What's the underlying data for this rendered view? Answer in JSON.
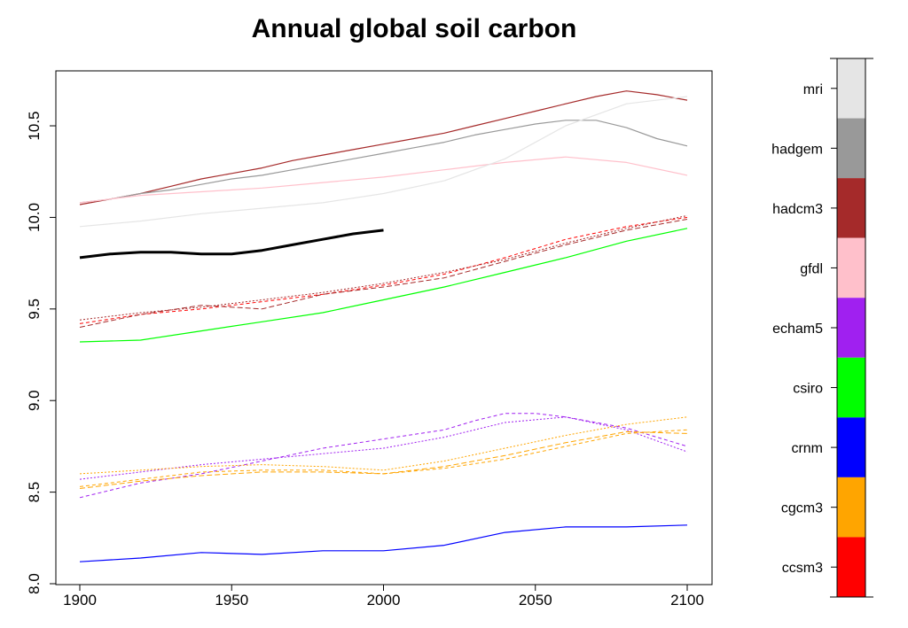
{
  "chart_data": {
    "type": "line",
    "title": "Annual global soil carbon",
    "xlabel": "",
    "ylabel": "",
    "xlim": [
      1900,
      2100
    ],
    "ylim": [
      8.0,
      10.8
    ],
    "x_ticks": [
      "1900",
      "1950",
      "2000",
      "2050",
      "2100"
    ],
    "y_ticks": [
      "8.0",
      "8.5",
      "9.0",
      "9.5",
      "10.0",
      "10.5"
    ],
    "grid": false,
    "legend_placement": "right",
    "legend": [
      {
        "name": "mri",
        "color": "#e5e5e5"
      },
      {
        "name": "hadgem",
        "color": "#999999"
      },
      {
        "name": "hadcm3",
        "color": "#a52a2a"
      },
      {
        "name": "gfdl",
        "color": "#ffc0cb"
      },
      {
        "name": "echam5",
        "color": "#a020f0"
      },
      {
        "name": "csiro",
        "color": "#00ff00"
      },
      {
        "name": "crnm",
        "color": "#0000ff"
      },
      {
        "name": "cgcm3",
        "color": "#ffa500"
      },
      {
        "name": "ccsm3",
        "color": "#ff0000"
      }
    ],
    "series": [
      {
        "color": "#000000",
        "width": 3,
        "dash": "",
        "x": [
          1900,
          1910,
          1920,
          1930,
          1940,
          1950,
          1960,
          1970,
          1980,
          1990,
          2000
        ],
        "y": [
          9.78,
          9.8,
          9.81,
          9.81,
          9.8,
          9.8,
          9.82,
          9.85,
          9.88,
          9.91,
          9.93
        ]
      },
      {
        "color": "#a52a2a",
        "width": 1.2,
        "dash": "",
        "x": [
          1900,
          1910,
          1920,
          1930,
          1940,
          1950,
          1960,
          1970,
          1980,
          1990,
          2000,
          2010,
          2020,
          2030,
          2040,
          2050,
          2060,
          2070,
          2080,
          2090,
          2100
        ],
        "y": [
          10.07,
          10.1,
          10.13,
          10.17,
          10.21,
          10.24,
          10.27,
          10.31,
          10.34,
          10.37,
          10.4,
          10.43,
          10.46,
          10.5,
          10.54,
          10.58,
          10.62,
          10.66,
          10.69,
          10.67,
          10.64
        ]
      },
      {
        "color": "#999999",
        "width": 1.2,
        "dash": "",
        "x": [
          1900,
          1910,
          1920,
          1930,
          1940,
          1950,
          1960,
          1970,
          1980,
          1990,
          2000,
          2010,
          2020,
          2030,
          2040,
          2050,
          2060,
          2070,
          2080,
          2090,
          2100
        ],
        "y": [
          10.08,
          10.1,
          10.13,
          10.15,
          10.18,
          10.21,
          10.23,
          10.26,
          10.29,
          10.32,
          10.35,
          10.38,
          10.41,
          10.45,
          10.48,
          10.51,
          10.53,
          10.53,
          10.49,
          10.43,
          10.39
        ]
      },
      {
        "color": "#ffc0cb",
        "width": 1.2,
        "dash": "",
        "x": [
          1900,
          1920,
          1940,
          1960,
          1980,
          2000,
          2020,
          2040,
          2060,
          2080,
          2100
        ],
        "y": [
          10.08,
          10.12,
          10.14,
          10.16,
          10.19,
          10.22,
          10.26,
          10.3,
          10.33,
          10.3,
          10.23
        ]
      },
      {
        "color": "#e5e5e5",
        "width": 1.2,
        "dash": "",
        "x": [
          1900,
          1920,
          1940,
          1960,
          1980,
          2000,
          2020,
          2040,
          2060,
          2080,
          2100
        ],
        "y": [
          9.95,
          9.98,
          10.02,
          10.05,
          10.08,
          10.13,
          10.2,
          10.32,
          10.5,
          10.62,
          10.66
        ]
      },
      {
        "color": "#ff0000",
        "width": 1,
        "dash": "4,3",
        "x": [
          1900,
          1920,
          1940,
          1960,
          1980,
          2000,
          2020,
          2040,
          2060,
          2080,
          2100
        ],
        "y": [
          9.42,
          9.47,
          9.5,
          9.54,
          9.58,
          9.63,
          9.69,
          9.78,
          9.88,
          9.95,
          10.0
        ]
      },
      {
        "color": "#a52a2a",
        "width": 1,
        "dash": "6,3",
        "x": [
          1900,
          1920,
          1940,
          1960,
          1980,
          2000,
          2020,
          2040,
          2060,
          2080,
          2100
        ],
        "y": [
          9.4,
          9.47,
          9.52,
          9.5,
          9.58,
          9.62,
          9.67,
          9.76,
          9.85,
          9.93,
          9.99
        ]
      },
      {
        "color": "#a52a2a",
        "width": 1,
        "dash": "2,2",
        "x": [
          1900,
          1920,
          1940,
          1960,
          1980,
          2000,
          2020,
          2040,
          2060,
          2080,
          2100
        ],
        "y": [
          9.44,
          9.48,
          9.51,
          9.55,
          9.59,
          9.64,
          9.7,
          9.77,
          9.86,
          9.94,
          10.01
        ]
      },
      {
        "color": "#00ff00",
        "width": 1.2,
        "dash": "",
        "x": [
          1900,
          1920,
          1940,
          1960,
          1980,
          2000,
          2020,
          2040,
          2060,
          2080,
          2100
        ],
        "y": [
          9.32,
          9.33,
          9.38,
          9.43,
          9.48,
          9.55,
          9.62,
          9.7,
          9.78,
          9.87,
          9.94
        ]
      },
      {
        "color": "#a020f0",
        "width": 1,
        "dash": "4,3",
        "x": [
          1900,
          1920,
          1940,
          1960,
          1980,
          2000,
          2020,
          2030,
          2040,
          2050,
          2060,
          2080,
          2100
        ],
        "y": [
          8.47,
          8.55,
          8.6,
          8.67,
          8.74,
          8.79,
          8.84,
          8.89,
          8.93,
          8.93,
          8.91,
          8.85,
          8.75
        ]
      },
      {
        "color": "#a020f0",
        "width": 1,
        "dash": "2,2",
        "x": [
          1900,
          1920,
          1940,
          1960,
          1980,
          2000,
          2020,
          2040,
          2060,
          2080,
          2100
        ],
        "y": [
          8.57,
          8.61,
          8.65,
          8.68,
          8.71,
          8.74,
          8.8,
          8.88,
          8.91,
          8.84,
          8.72
        ]
      },
      {
        "color": "#ffa500",
        "width": 1,
        "dash": "4,3",
        "x": [
          1900,
          1920,
          1940,
          1960,
          1980,
          2000,
          2020,
          2040,
          2060,
          2080,
          2100
        ],
        "y": [
          8.53,
          8.57,
          8.61,
          8.62,
          8.62,
          8.6,
          8.63,
          8.68,
          8.75,
          8.82,
          8.84
        ]
      },
      {
        "color": "#ffa500",
        "width": 1,
        "dash": "2,2",
        "x": [
          1900,
          1920,
          1940,
          1960,
          1980,
          2000,
          2020,
          2040,
          2060,
          2080,
          2100
        ],
        "y": [
          8.6,
          8.62,
          8.64,
          8.65,
          8.64,
          8.62,
          8.67,
          8.74,
          8.81,
          8.87,
          8.91
        ]
      },
      {
        "color": "#ffa500",
        "width": 1,
        "dash": "6,3",
        "x": [
          1900,
          1920,
          1940,
          1960,
          1980,
          2000,
          2020,
          2040,
          2060,
          2080,
          2100
        ],
        "y": [
          8.52,
          8.56,
          8.59,
          8.61,
          8.61,
          8.6,
          8.64,
          8.7,
          8.77,
          8.83,
          8.82
        ]
      },
      {
        "color": "#0000ff",
        "width": 1.2,
        "dash": "",
        "x": [
          1900,
          1920,
          1940,
          1960,
          1980,
          2000,
          2020,
          2040,
          2060,
          2080,
          2100
        ],
        "y": [
          8.12,
          8.14,
          8.17,
          8.16,
          8.18,
          8.18,
          8.21,
          8.28,
          8.31,
          8.31,
          8.32
        ]
      }
    ]
  }
}
